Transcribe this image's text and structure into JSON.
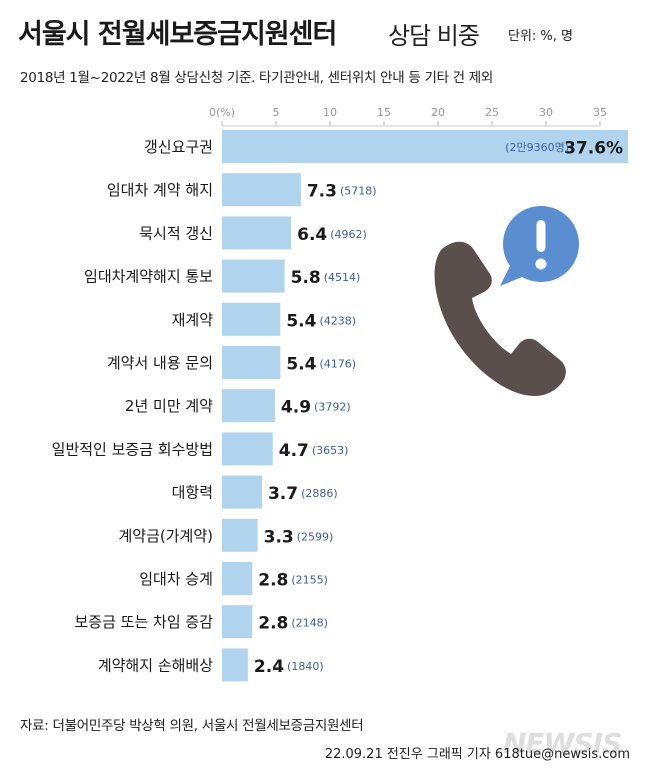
{
  "title": "서울시 전월세보증금지원센터",
  "title_sub": "상담 비중",
  "unit": "단위: %, 명",
  "subtitle": "2018년 1월~2022년 8월 상담신청 기준. 타기관안내, 센터위치 안내 등 기타 건 제외",
  "source": "자료: 더불어민주당 박상혁 의원, 서울시 전월세보증금지원센터",
  "credit": "22.09.21 전진우 그래픽 기자 618tue@newsis.com",
  "watermark": "NEWSIS",
  "colors": {
    "bar": "#b1d4ee",
    "count_label": "#3b5f9c",
    "axis_tick": "#999999",
    "phone": "#5a4f4d",
    "bubble": "#5b8ed0"
  },
  "icons": [
    "phone-icon",
    "alert-bubble-icon"
  ],
  "chart_data": {
    "type": "bar",
    "orientation": "horizontal",
    "x_axis_ticks": [
      "0(%)",
      "5",
      "10",
      "15",
      "20",
      "25",
      "30",
      "35"
    ],
    "xlim": [
      0,
      37.6
    ],
    "categories": [
      "갱신요구권",
      "임대차 계약 해지",
      "묵시적 갱신",
      "임대차계약해지 통보",
      "재계약",
      "계약서 내용 문의",
      "2년 미만 계약",
      "일반적인 보증금 회수방법",
      "대항력",
      "계약금(가계약)",
      "임대차 승계",
      "보증금 또는 차임 증감",
      "계약해지 손해배상"
    ],
    "values": [
      37.6,
      7.3,
      6.4,
      5.8,
      5.4,
      5.4,
      4.9,
      4.7,
      3.7,
      3.3,
      2.8,
      2.8,
      2.4
    ],
    "value_labels": [
      "37.6%",
      "7.3",
      "6.4",
      "5.8",
      "5.4",
      "5.4",
      "4.9",
      "4.7",
      "3.7",
      "3.3",
      "2.8",
      "2.8",
      "2.4"
    ],
    "counts": [
      "(2만9360명)",
      "(5718)",
      "(4962)",
      "(4514)",
      "(4238)",
      "(4176)",
      "(3792)",
      "(3653)",
      "(2886)",
      "(2599)",
      "(2155)",
      "(2148)",
      "(1840)"
    ]
  }
}
